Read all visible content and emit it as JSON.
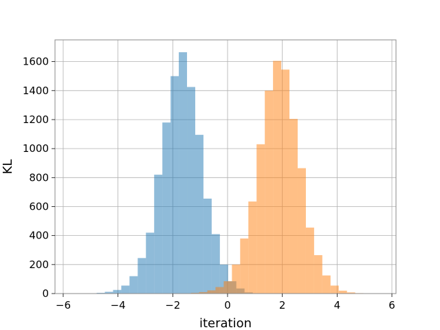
{
  "chart_data": {
    "type": "bar",
    "title": "",
    "xlabel": "iteration",
    "ylabel": "KL",
    "xlim": [
      -6.3,
      6.15
    ],
    "ylim": [
      0,
      1750
    ],
    "xticks": [
      -6,
      -4,
      -2,
      0,
      2,
      4,
      6
    ],
    "xtick_labels": [
      "−6",
      "−4",
      "−2",
      "0",
      "2",
      "4",
      "6"
    ],
    "yticks": [
      0,
      200,
      400,
      600,
      800,
      1000,
      1200,
      1400,
      1600
    ],
    "ytick_labels": [
      "0",
      "200",
      "400",
      "600",
      "800",
      "1000",
      "1200",
      "1400",
      "1600"
    ],
    "grid": true,
    "alpha": 0.5,
    "series": [
      {
        "color": "#1f77b4",
        "bins": [
          [
            -5.08,
            -4.78,
            2
          ],
          [
            -4.78,
            -4.48,
            5
          ],
          [
            -4.48,
            -4.18,
            12
          ],
          [
            -4.18,
            -3.88,
            25
          ],
          [
            -3.88,
            -3.58,
            55
          ],
          [
            -3.58,
            -3.28,
            120
          ],
          [
            -3.28,
            -2.98,
            245
          ],
          [
            -2.98,
            -2.68,
            420
          ],
          [
            -2.68,
            -2.38,
            820
          ],
          [
            -2.38,
            -2.08,
            1180
          ],
          [
            -2.08,
            -1.78,
            1500
          ],
          [
            -1.78,
            -1.48,
            1665
          ],
          [
            -1.48,
            -1.18,
            1425
          ],
          [
            -1.18,
            -0.88,
            1095
          ],
          [
            -0.88,
            -0.58,
            655
          ],
          [
            -0.58,
            -0.28,
            410
          ],
          [
            -0.28,
            0.02,
            200
          ],
          [
            0.02,
            0.32,
            85
          ],
          [
            0.32,
            0.62,
            35
          ],
          [
            0.62,
            0.92,
            8
          ],
          [
            0.92,
            1.22,
            2
          ]
        ]
      },
      {
        "color": "#ff7f0e",
        "bins": [
          [
            -1.64,
            -1.34,
            2
          ],
          [
            -1.34,
            -1.04,
            5
          ],
          [
            -1.04,
            -0.74,
            10
          ],
          [
            -0.74,
            -0.44,
            22
          ],
          [
            -0.44,
            -0.14,
            45
          ],
          [
            -0.14,
            0.16,
            85
          ],
          [
            0.16,
            0.46,
            200
          ],
          [
            0.46,
            0.76,
            380
          ],
          [
            0.76,
            1.06,
            635
          ],
          [
            1.06,
            1.36,
            1030
          ],
          [
            1.36,
            1.66,
            1400
          ],
          [
            1.66,
            1.96,
            1605
          ],
          [
            1.96,
            2.26,
            1545
          ],
          [
            2.26,
            2.56,
            1205
          ],
          [
            2.56,
            2.86,
            865
          ],
          [
            2.86,
            3.16,
            455
          ],
          [
            3.16,
            3.46,
            265
          ],
          [
            3.46,
            3.76,
            125
          ],
          [
            3.76,
            4.06,
            55
          ],
          [
            4.06,
            4.36,
            20
          ],
          [
            4.36,
            4.66,
            8
          ],
          [
            4.66,
            4.96,
            3
          ]
        ]
      }
    ]
  }
}
